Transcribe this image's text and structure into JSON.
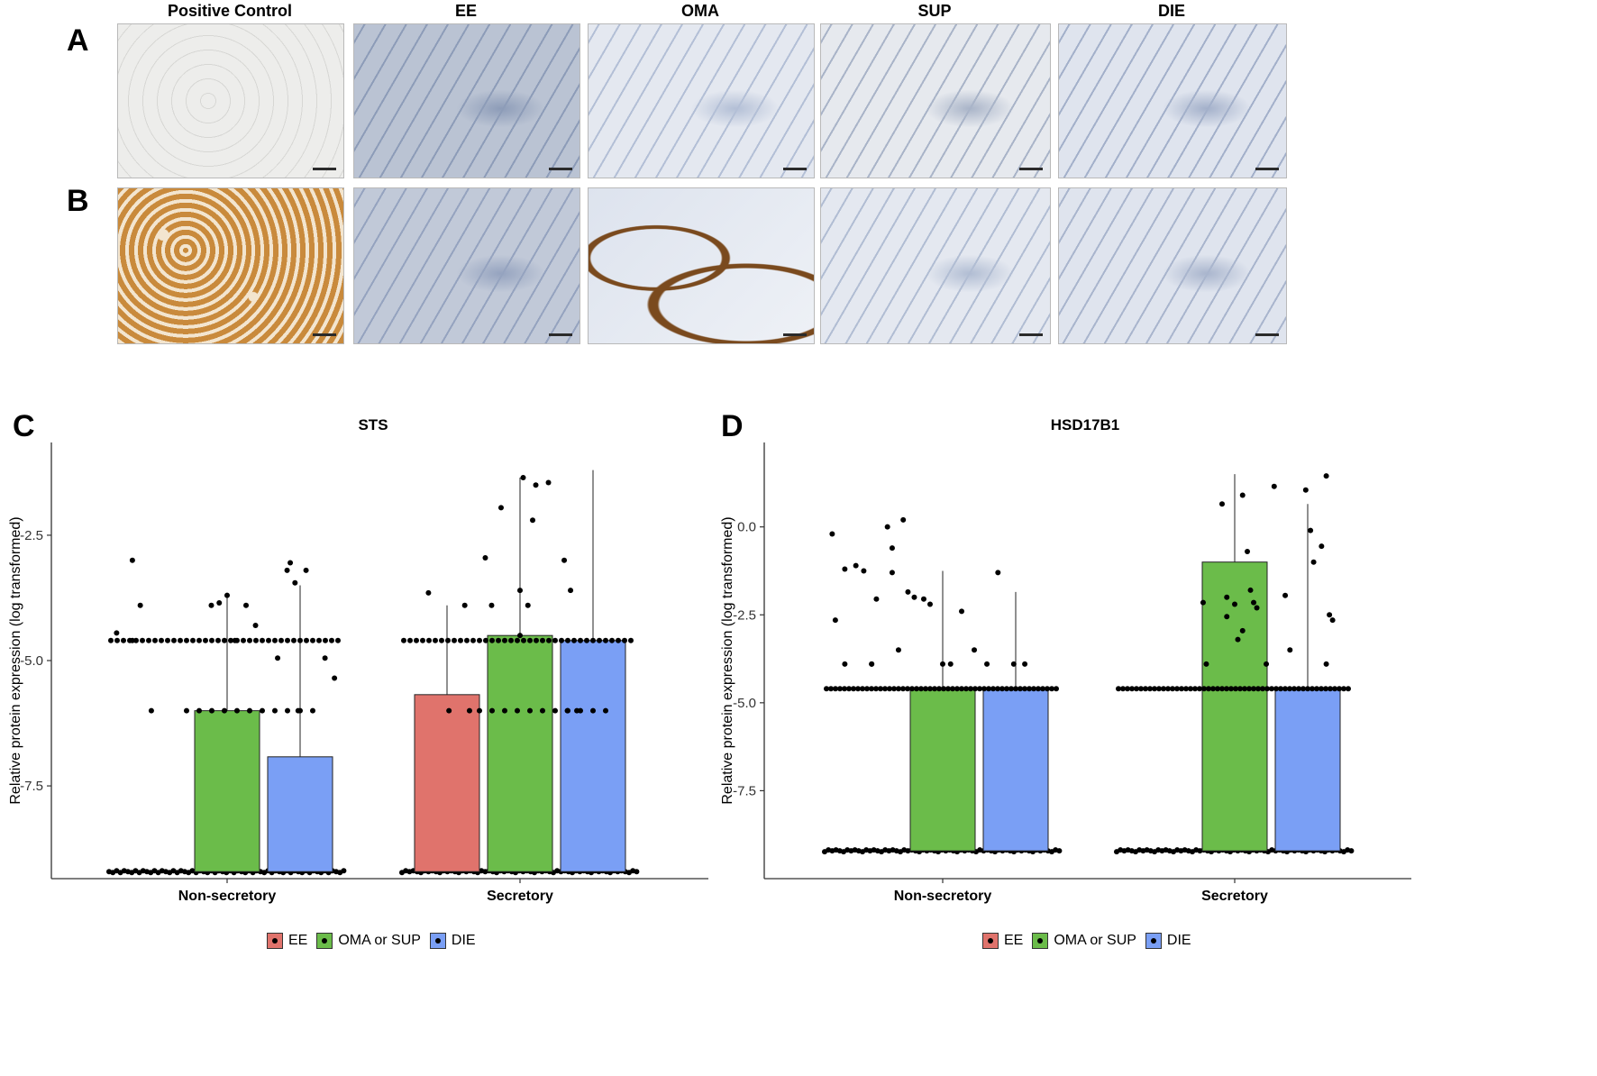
{
  "micrographs": {
    "row_labels": [
      "A",
      "B"
    ],
    "columns": [
      "Positive Control",
      "EE",
      "OMA",
      "SUP",
      "DIE"
    ],
    "tiles": [
      {
        "row": "A",
        "column": "Positive Control",
        "stain": "pale",
        "base": "#ededeb",
        "tint": "#d7d7d4"
      },
      {
        "row": "A",
        "column": "EE",
        "stain": "blue",
        "base": "#bac3d3",
        "tint": "#8d9cb8"
      },
      {
        "row": "A",
        "column": "OMA",
        "stain": "blue",
        "base": "#e4e8f0",
        "tint": "#b3bfd6"
      },
      {
        "row": "A",
        "column": "SUP",
        "stain": "blue",
        "base": "#e6e9ee",
        "tint": "#a9b4c8"
      },
      {
        "row": "A",
        "column": "DIE",
        "stain": "blue",
        "base": "#dfe4ee",
        "tint": "#a3b0ca"
      },
      {
        "row": "B",
        "column": "Positive Control",
        "stain": "brown",
        "base": "#c98a3c",
        "tint": "#f3e5cf"
      },
      {
        "row": "B",
        "column": "EE",
        "stain": "blue",
        "base": "#c1c9d8",
        "tint": "#95a3bf"
      },
      {
        "row": "B",
        "column": "OMA",
        "stain": "brown-lining",
        "base": "#dde3ee",
        "tint": "#7a4a1e"
      },
      {
        "row": "B",
        "column": "SUP",
        "stain": "blue",
        "base": "#e4e8f0",
        "tint": "#b1bdd3"
      },
      {
        "row": "B",
        "column": "DIE",
        "stain": "blue",
        "base": "#dfe4ee",
        "tint": "#a9b5cd"
      }
    ]
  },
  "panels": {
    "C": {
      "letter": "C"
    },
    "D": {
      "letter": "D"
    }
  },
  "colors": {
    "EE": "#e0736c",
    "OMA_SUP": "#6bbc4a",
    "DIE": "#7a9ff5",
    "points": "#000000",
    "axis": "#333333"
  },
  "chart_data": [
    {
      "type": "bar",
      "title": "STS",
      "xlabel": "",
      "ylabel": "Relative protein expression (log transformed)",
      "categories": [
        "Non-secretory",
        "Secretory"
      ],
      "ylim": [
        -9.35,
        -0.65
      ],
      "baseline": -9.21,
      "yticks": [
        -2.5,
        -5.0,
        -7.5
      ],
      "ytick_labels": [
        "-2.5",
        "-5.0",
        "-7.5"
      ],
      "series": [
        {
          "name": "EE",
          "values": [
            null,
            -5.68
          ],
          "error_upper": [
            null,
            -3.9
          ]
        },
        {
          "name": "OMA or SUP",
          "values": [
            -6.0,
            -4.5
          ],
          "error_upper": [
            -3.65,
            -1.35
          ]
        },
        {
          "name": "DIE",
          "values": [
            -6.92,
            -4.6
          ],
          "error_upper": [
            -3.5,
            -1.2
          ]
        }
      ],
      "points": {
        "levels": [
          {
            "y": -9.21,
            "label": "baseline cluster"
          },
          {
            "y": -6.0,
            "label": ""
          },
          {
            "y": -4.6,
            "label": ""
          },
          {
            "y": -3.9,
            "label": ""
          }
        ],
        "scatter": [
          [
            -0.7,
            -4.45
          ],
          [
            -0.6,
            -3.0
          ],
          [
            -0.55,
            -3.9
          ],
          [
            -0.48,
            -6.0
          ],
          [
            -0.1,
            -3.9
          ],
          [
            -0.05,
            -3.85
          ],
          [
            0.0,
            -3.7
          ],
          [
            0.05,
            -4.6
          ],
          [
            0.12,
            -3.9
          ],
          [
            0.18,
            -4.3
          ],
          [
            0.32,
            -4.95
          ],
          [
            0.38,
            -3.2
          ],
          [
            0.4,
            -3.05
          ],
          [
            0.43,
            -3.45
          ],
          [
            0.45,
            -6.0
          ],
          [
            0.5,
            -3.2
          ],
          [
            0.62,
            -4.95
          ],
          [
            0.68,
            -5.35
          ],
          [
            -0.6,
            -4.6
          ],
          [
            -0.58,
            -3.65
          ],
          [
            -0.35,
            -3.9
          ],
          [
            -0.32,
            -6.0
          ],
          [
            -0.18,
            -3.9
          ],
          [
            0.02,
            -1.35
          ],
          [
            -0.22,
            -2.95
          ],
          [
            0.0,
            -3.6
          ],
          [
            0.05,
            -3.9
          ],
          [
            0.1,
            -1.5
          ],
          [
            0.18,
            -1.45
          ],
          [
            -0.12,
            -1.95
          ],
          [
            0.0,
            -4.5
          ],
          [
            0.08,
            -2.2
          ],
          [
            0.28,
            -3.0
          ],
          [
            0.32,
            -3.6
          ],
          [
            0.3,
            -6.0
          ],
          [
            0.36,
            -6.0
          ],
          [
            -0.45,
            -6.0
          ]
        ]
      },
      "legend": [
        "EE",
        "OMA or SUP",
        "DIE"
      ],
      "legend_position": "bottom"
    },
    {
      "type": "bar",
      "title": "HSD17B1",
      "xlabel": "",
      "ylabel": "Relative protein expression (log transformed)",
      "categories": [
        "Non-secretory",
        "Secretory"
      ],
      "ylim": [
        -10.0,
        2.4
      ],
      "baseline": -9.21,
      "yticks": [
        0.0,
        -2.5,
        -5.0,
        -7.5
      ],
      "ytick_labels": [
        "0.0",
        "-2.5",
        "-5.0",
        "-7.5"
      ],
      "series": [
        {
          "name": "EE",
          "values": [
            null,
            null
          ],
          "error_upper": [
            null,
            null
          ]
        },
        {
          "name": "OMA or SUP",
          "values": [
            -4.6,
            -1.0
          ],
          "error_upper": [
            -1.25,
            1.5
          ]
        },
        {
          "name": "DIE",
          "values": [
            -4.6,
            -4.6
          ],
          "error_upper": [
            -1.85,
            0.65
          ]
        }
      ],
      "points": {
        "scatter": [
          [
            -0.62,
            -3.9
          ],
          [
            -0.5,
            -1.25
          ],
          [
            -0.45,
            -3.9
          ],
          [
            -0.32,
            -1.3
          ],
          [
            -0.22,
            -1.85
          ],
          [
            -0.18,
            -2.0
          ],
          [
            -0.12,
            -2.05
          ],
          [
            -0.08,
            -2.2
          ],
          [
            0.0,
            -3.9
          ],
          [
            0.05,
            -3.9
          ],
          [
            0.12,
            -2.4
          ],
          [
            0.2,
            -3.5
          ],
          [
            0.28,
            -3.9
          ],
          [
            0.35,
            -1.3
          ],
          [
            0.45,
            -3.9
          ],
          [
            0.52,
            -3.9
          ],
          [
            -0.7,
            -0.2
          ],
          [
            -0.68,
            -2.65
          ],
          [
            -0.62,
            -1.2
          ],
          [
            -0.55,
            -1.1
          ],
          [
            -0.45,
            -3.9
          ],
          [
            -0.42,
            -2.05
          ],
          [
            -0.35,
            0.0
          ],
          [
            -0.32,
            -0.6
          ],
          [
            -0.28,
            -3.5
          ],
          [
            -0.25,
            0.2
          ],
          [
            -0.18,
            -3.9
          ],
          [
            -0.08,
            0.65
          ],
          [
            -0.05,
            -2.0
          ],
          [
            0.0,
            -2.2
          ],
          [
            0.02,
            -3.2
          ],
          [
            0.05,
            0.9
          ],
          [
            0.08,
            -0.7
          ],
          [
            0.1,
            -1.8
          ],
          [
            0.14,
            -2.3
          ],
          [
            0.2,
            -3.9
          ],
          [
            0.25,
            1.15
          ],
          [
            0.32,
            -1.95
          ],
          [
            0.35,
            -3.5
          ],
          [
            0.45,
            1.05
          ],
          [
            0.48,
            -0.1
          ],
          [
            0.5,
            -1.0
          ],
          [
            0.58,
            1.45
          ],
          [
            0.6,
            -2.5
          ],
          [
            0.62,
            -2.65
          ],
          [
            0.58,
            -3.9
          ],
          [
            0.55,
            -0.55
          ],
          [
            -0.05,
            -2.55
          ],
          [
            0.05,
            -2.95
          ],
          [
            0.12,
            -2.15
          ],
          [
            -0.2,
            -2.15
          ]
        ]
      },
      "legend": [
        "EE",
        "OMA or SUP",
        "DIE"
      ],
      "legend_position": "bottom"
    }
  ]
}
